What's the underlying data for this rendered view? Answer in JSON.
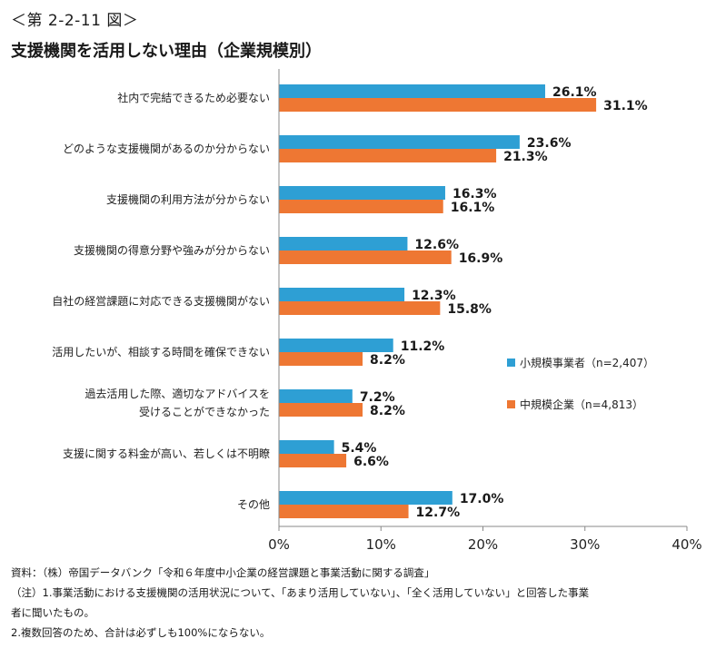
{
  "figure_number": "＜第 2-2-11 図＞",
  "title": "支援機関を活用しない理由（企業規模別）",
  "chart_data": {
    "type": "bar",
    "orientation": "horizontal",
    "categories": [
      [
        "社内で完結できるため必要ない"
      ],
      [
        "どのような支援機関があるのか分からない"
      ],
      [
        "支援機関の利用方法が分からない"
      ],
      [
        "支援機関の得意分野や強みが分からない"
      ],
      [
        "自社の経営課題に対応できる支援機関がない"
      ],
      [
        "活用したいが、相談する時間を確保できない"
      ],
      [
        "過去活用した際、適切なアドバイスを",
        "受けることができなかった"
      ],
      [
        "支援に関する料金が高い、若しくは不明瞭"
      ],
      [
        "その他"
      ]
    ],
    "series": [
      {
        "name": "小規模事業者（n=2,407）",
        "color": "#2e9fd4",
        "values": [
          26.1,
          23.6,
          16.3,
          12.6,
          12.3,
          11.2,
          7.2,
          5.4,
          17.0
        ],
        "labels": [
          "26.1%",
          "23.6%",
          "16.3%",
          "12.6%",
          "12.3%",
          "11.2%",
          "7.2%",
          "5.4%",
          "17.0%"
        ]
      },
      {
        "name": "中規模企業（n=4,813）",
        "color": "#ee7733",
        "values": [
          31.1,
          21.3,
          16.1,
          16.9,
          15.8,
          8.2,
          8.2,
          6.6,
          12.7
        ],
        "labels": [
          "31.1%",
          "21.3%",
          "16.1%",
          "16.9%",
          "15.8%",
          "8.2%",
          "8.2%",
          "6.6%",
          "12.7%"
        ]
      }
    ],
    "xlim": [
      0,
      40
    ],
    "xticks": [
      0,
      10,
      20,
      30,
      40
    ],
    "xtick_labels": [
      "0%",
      "10%",
      "20%",
      "30%",
      "40%"
    ],
    "grid": false,
    "legend": "right"
  },
  "notes": [
    "資料：（株）帝国データバンク「令和６年度中小企業の経営課題と事業活動に関する調査」",
    "（注）1.事業活動における支援機関の活用状況について、「あまり活用していない」、「全く活用していない」と回答した事業",
    "者に聞いたもの。",
    "2.複数回答のため、合計は必ずしも100%にならない。"
  ]
}
